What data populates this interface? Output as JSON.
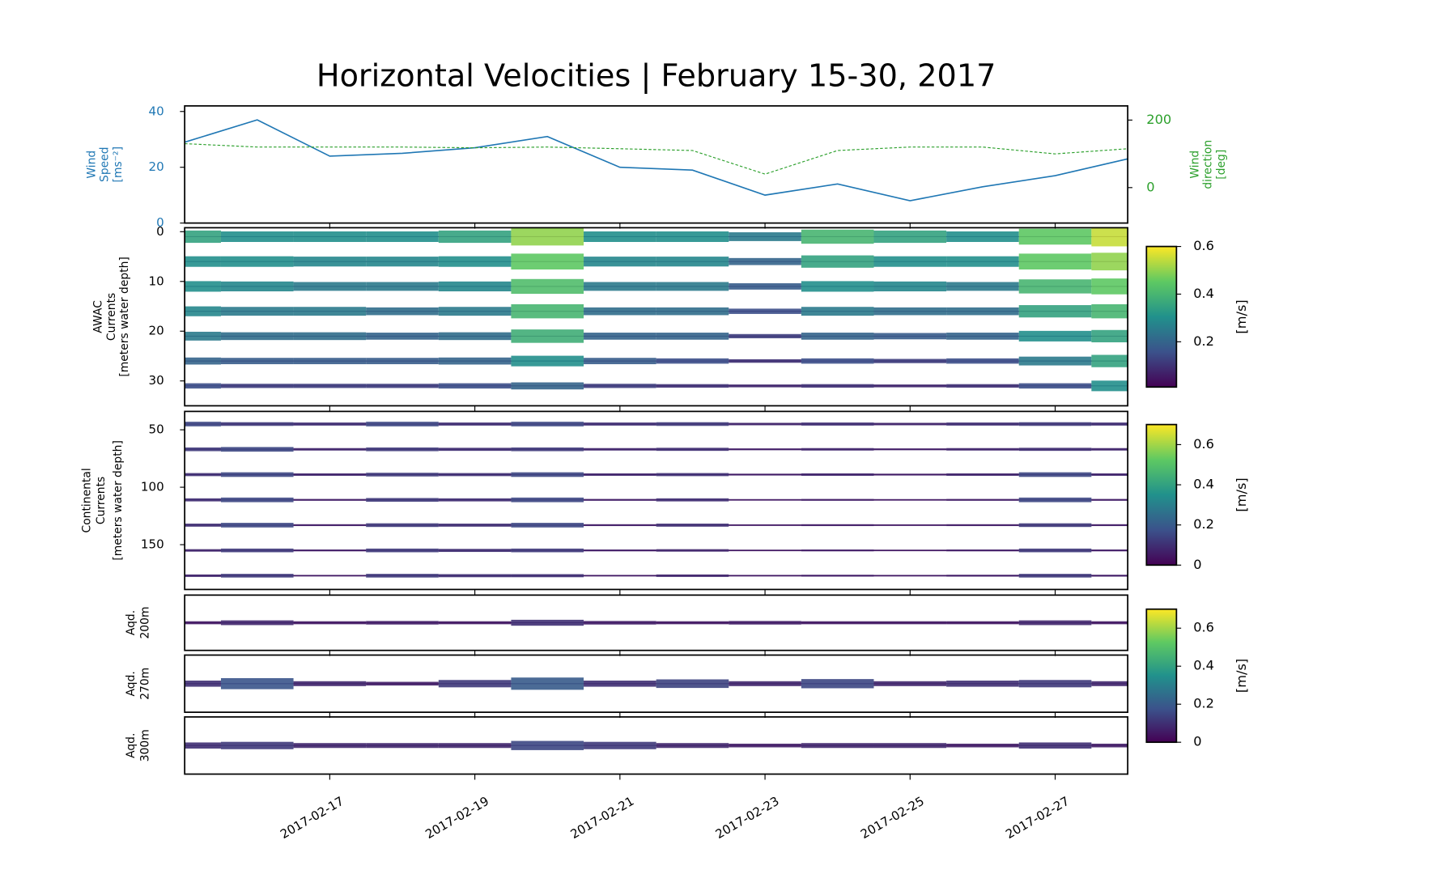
{
  "chart_data": [
    {
      "type": "line",
      "title": "Horizontal Velocities | February 15-30, 2017",
      "x": [
        "2017-02-15",
        "2017-02-16",
        "2017-02-17",
        "2017-02-18",
        "2017-02-19",
        "2017-02-20",
        "2017-02-21",
        "2017-02-22",
        "2017-02-23",
        "2017-02-24",
        "2017-02-25",
        "2017-02-26",
        "2017-02-27",
        "2017-02-28"
      ],
      "xlim": [
        "2017-02-15",
        "2017-02-28"
      ],
      "xticks": [
        "2017-02-17",
        "2017-02-19",
        "2017-02-21",
        "2017-02-23",
        "2017-02-25",
        "2017-02-27"
      ],
      "ylabel": [
        "Wind",
        "Speed",
        "[ms⁻²]"
      ],
      "y2label": [
        "Wind",
        "direction",
        "[deg]"
      ],
      "ylim": [
        0,
        42
      ],
      "yticks": [
        0,
        20,
        40
      ],
      "y2lim": [
        -105,
        242
      ],
      "y2ticks": [
        0,
        200
      ],
      "series": [
        {
          "color": "#1f77b4",
          "values": [
            29,
            37,
            24,
            25,
            27,
            31,
            20,
            19,
            10,
            14,
            8,
            13,
            17,
            23
          ]
        },
        {
          "color": "#2ca02c",
          "axis": "y2",
          "dashed": true,
          "values": [
            130,
            120,
            120,
            120,
            118,
            120,
            115,
            110,
            40,
            110,
            120,
            120,
            100,
            115
          ]
        }
      ]
    },
    {
      "type": "quiver",
      "ylabel": [
        "AWAC",
        "Currents",
        "[meters water depth]"
      ],
      "ylim": [
        35,
        -0.8
      ],
      "yticks": [
        0,
        10,
        20,
        30
      ],
      "depths": [
        1,
        6,
        11,
        16,
        21,
        26,
        31
      ],
      "values": [
        [
          0.35,
          0.3,
          0.3,
          0.3,
          0.35,
          0.5,
          0.3,
          0.3,
          0.25,
          0.4,
          0.35,
          0.3,
          0.45,
          0.55
        ],
        [
          0.3,
          0.3,
          0.28,
          0.28,
          0.3,
          0.45,
          0.28,
          0.28,
          0.2,
          0.35,
          0.3,
          0.3,
          0.45,
          0.5
        ],
        [
          0.3,
          0.28,
          0.25,
          0.25,
          0.28,
          0.42,
          0.25,
          0.25,
          0.18,
          0.3,
          0.28,
          0.25,
          0.4,
          0.45
        ],
        [
          0.28,
          0.25,
          0.25,
          0.22,
          0.25,
          0.4,
          0.22,
          0.22,
          0.15,
          0.25,
          0.22,
          0.22,
          0.35,
          0.4
        ],
        [
          0.25,
          0.22,
          0.22,
          0.2,
          0.22,
          0.38,
          0.2,
          0.2,
          0.12,
          0.2,
          0.18,
          0.2,
          0.3,
          0.35
        ],
        [
          0.2,
          0.18,
          0.18,
          0.18,
          0.2,
          0.3,
          0.18,
          0.15,
          0.1,
          0.15,
          0.12,
          0.15,
          0.25,
          0.35
        ],
        [
          0.15,
          0.12,
          0.12,
          0.12,
          0.15,
          0.2,
          0.12,
          0.1,
          0.08,
          0.1,
          0.08,
          0.1,
          0.15,
          0.3
        ]
      ],
      "colorbar": {
        "label": "[m/s]",
        "clim": [
          0.01,
          0.6
        ],
        "ticks": [
          0.2,
          0.4,
          0.6
        ]
      }
    },
    {
      "type": "quiver",
      "ylabel": [
        "Continental",
        "Currents",
        "[meters water depth]"
      ],
      "ylim": [
        189,
        34
      ],
      "yticks": [
        50,
        100,
        150
      ],
      "depths": [
        45,
        67,
        89,
        111,
        133,
        155,
        177
      ],
      "values": [
        [
          0.15,
          0.12,
          0.1,
          0.15,
          0.1,
          0.15,
          0.1,
          0.12,
          0.08,
          0.1,
          0.08,
          0.1,
          0.12,
          0.1
        ],
        [
          0.12,
          0.15,
          0.08,
          0.12,
          0.1,
          0.12,
          0.08,
          0.1,
          0.06,
          0.08,
          0.06,
          0.08,
          0.1,
          0.08
        ],
        [
          0.1,
          0.15,
          0.08,
          0.12,
          0.1,
          0.15,
          0.08,
          0.1,
          0.06,
          0.08,
          0.06,
          0.08,
          0.15,
          0.08
        ],
        [
          0.1,
          0.15,
          0.06,
          0.12,
          0.1,
          0.15,
          0.06,
          0.1,
          0.05,
          0.06,
          0.05,
          0.06,
          0.15,
          0.06
        ],
        [
          0.1,
          0.15,
          0.06,
          0.12,
          0.1,
          0.15,
          0.06,
          0.1,
          0.05,
          0.06,
          0.05,
          0.06,
          0.12,
          0.06
        ],
        [
          0.08,
          0.12,
          0.06,
          0.12,
          0.1,
          0.12,
          0.06,
          0.08,
          0.05,
          0.06,
          0.05,
          0.06,
          0.12,
          0.06
        ],
        [
          0.08,
          0.12,
          0.05,
          0.12,
          0.1,
          0.1,
          0.05,
          0.08,
          0.05,
          0.06,
          0.05,
          0.06,
          0.12,
          0.06
        ]
      ],
      "colorbar": {
        "label": "[m/s]",
        "clim": [
          0,
          0.7
        ],
        "ticks": [
          0,
          0.2,
          0.4,
          0.6
        ]
      }
    },
    {
      "type": "quiver",
      "ylabel": [
        "Aqd.",
        "200m"
      ],
      "values": [
        [
          0.05,
          0.08,
          0.05,
          0.06,
          0.05,
          0.1,
          0.06,
          0.05,
          0.06,
          0.05,
          0.05,
          0.05,
          0.08,
          0.05
        ]
      ],
      "colorbar": {
        "label": "[m/s]",
        "clim": [
          0,
          0.7
        ],
        "ticks": [
          0,
          0.2,
          0.4,
          0.6
        ]
      }
    },
    {
      "type": "quiver",
      "ylabel": [
        "Aqd.",
        "270m"
      ],
      "values": [
        [
          0.1,
          0.18,
          0.08,
          0.06,
          0.12,
          0.2,
          0.1,
          0.14,
          0.08,
          0.15,
          0.08,
          0.1,
          0.12,
          0.08
        ]
      ]
    },
    {
      "type": "quiver",
      "ylabel": [
        "Aqd.",
        "300m"
      ],
      "values": [
        [
          0.1,
          0.12,
          0.08,
          0.08,
          0.08,
          0.15,
          0.12,
          0.08,
          0.06,
          0.08,
          0.08,
          0.06,
          0.1,
          0.06
        ]
      ]
    }
  ]
}
